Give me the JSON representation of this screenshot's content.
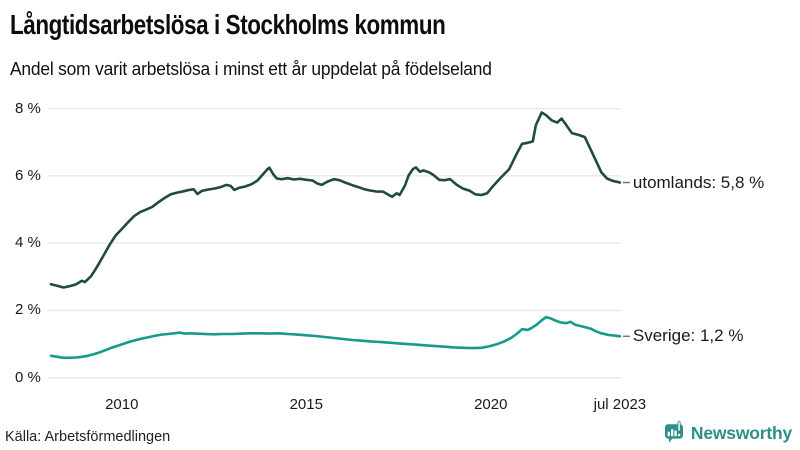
{
  "chart_data": {
    "type": "line",
    "title": "Långtidsarbetslösa i Stockholms kommun",
    "subtitle": "Andel som varit arbetslösa i minst ett år uppdelat på födelseland",
    "xlim": [
      2008.0,
      2023.53
    ],
    "ylim": [
      0,
      8
    ],
    "grid": true,
    "legend_position": "end-of-line",
    "x_ticks": [
      {
        "value": 2010,
        "label": "2010"
      },
      {
        "value": 2015,
        "label": "2015"
      },
      {
        "value": 2020,
        "label": "2020"
      },
      {
        "value": 2023.5,
        "label": "jul 2023"
      }
    ],
    "y_ticks": [
      {
        "value": 8,
        "label": "8 %"
      },
      {
        "value": 6,
        "label": "6 %"
      },
      {
        "value": 4,
        "label": "4 %"
      },
      {
        "value": 2,
        "label": "2 %"
      },
      {
        "value": 0,
        "label": "0 %"
      }
    ],
    "series": [
      {
        "name": "utomlands",
        "color": "#204a42",
        "end_label": "utomlands: 5,8 %",
        "last_value": "5,8 %",
        "points": [
          [
            2008.08,
            2.78
          ],
          [
            2008.25,
            2.73
          ],
          [
            2008.42,
            2.68
          ],
          [
            2008.58,
            2.72
          ],
          [
            2008.75,
            2.77
          ],
          [
            2008.92,
            2.88
          ],
          [
            2009.0,
            2.84
          ],
          [
            2009.17,
            3.02
          ],
          [
            2009.33,
            3.3
          ],
          [
            2009.5,
            3.62
          ],
          [
            2009.67,
            3.95
          ],
          [
            2009.83,
            4.22
          ],
          [
            2010.0,
            4.42
          ],
          [
            2010.17,
            4.62
          ],
          [
            2010.33,
            4.8
          ],
          [
            2010.5,
            4.92
          ],
          [
            2010.67,
            5.0
          ],
          [
            2010.83,
            5.08
          ],
          [
            2011.0,
            5.22
          ],
          [
            2011.17,
            5.35
          ],
          [
            2011.33,
            5.45
          ],
          [
            2011.5,
            5.5
          ],
          [
            2011.67,
            5.54
          ],
          [
            2011.83,
            5.58
          ],
          [
            2011.95,
            5.6
          ],
          [
            2012.05,
            5.46
          ],
          [
            2012.17,
            5.55
          ],
          [
            2012.33,
            5.59
          ],
          [
            2012.5,
            5.62
          ],
          [
            2012.67,
            5.66
          ],
          [
            2012.83,
            5.73
          ],
          [
            2012.95,
            5.7
          ],
          [
            2013.05,
            5.58
          ],
          [
            2013.17,
            5.64
          ],
          [
            2013.33,
            5.68
          ],
          [
            2013.5,
            5.74
          ],
          [
            2013.67,
            5.85
          ],
          [
            2013.83,
            6.05
          ],
          [
            2013.95,
            6.2
          ],
          [
            2014.0,
            6.24
          ],
          [
            2014.1,
            6.05
          ],
          [
            2014.2,
            5.92
          ],
          [
            2014.33,
            5.9
          ],
          [
            2014.5,
            5.93
          ],
          [
            2014.67,
            5.89
          ],
          [
            2014.83,
            5.91
          ],
          [
            2015.0,
            5.88
          ],
          [
            2015.17,
            5.86
          ],
          [
            2015.3,
            5.77
          ],
          [
            2015.42,
            5.73
          ],
          [
            2015.58,
            5.83
          ],
          [
            2015.75,
            5.9
          ],
          [
            2015.9,
            5.87
          ],
          [
            2016.08,
            5.79
          ],
          [
            2016.25,
            5.72
          ],
          [
            2016.42,
            5.66
          ],
          [
            2016.58,
            5.6
          ],
          [
            2016.75,
            5.56
          ],
          [
            2016.92,
            5.53
          ],
          [
            2017.08,
            5.53
          ],
          [
            2017.25,
            5.42
          ],
          [
            2017.33,
            5.38
          ],
          [
            2017.45,
            5.48
          ],
          [
            2017.53,
            5.43
          ],
          [
            2017.67,
            5.7
          ],
          [
            2017.78,
            6.02
          ],
          [
            2017.89,
            6.2
          ],
          [
            2017.97,
            6.25
          ],
          [
            2018.08,
            6.12
          ],
          [
            2018.17,
            6.16
          ],
          [
            2018.33,
            6.1
          ],
          [
            2018.45,
            6.02
          ],
          [
            2018.6,
            5.88
          ],
          [
            2018.75,
            5.87
          ],
          [
            2018.9,
            5.9
          ],
          [
            2019.08,
            5.73
          ],
          [
            2019.25,
            5.62
          ],
          [
            2019.42,
            5.56
          ],
          [
            2019.58,
            5.45
          ],
          [
            2019.75,
            5.43
          ],
          [
            2019.9,
            5.48
          ],
          [
            2020.05,
            5.68
          ],
          [
            2020.25,
            5.92
          ],
          [
            2020.5,
            6.2
          ],
          [
            2020.7,
            6.65
          ],
          [
            2020.85,
            6.95
          ],
          [
            2021.0,
            6.98
          ],
          [
            2021.14,
            7.02
          ],
          [
            2021.22,
            7.5
          ],
          [
            2021.38,
            7.88
          ],
          [
            2021.5,
            7.8
          ],
          [
            2021.65,
            7.65
          ],
          [
            2021.8,
            7.58
          ],
          [
            2021.92,
            7.7
          ],
          [
            2022.05,
            7.5
          ],
          [
            2022.2,
            7.27
          ],
          [
            2022.4,
            7.21
          ],
          [
            2022.55,
            7.15
          ],
          [
            2022.68,
            6.85
          ],
          [
            2022.85,
            6.45
          ],
          [
            2023.0,
            6.1
          ],
          [
            2023.15,
            5.92
          ],
          [
            2023.3,
            5.85
          ],
          [
            2023.5,
            5.8
          ]
        ]
      },
      {
        "name": "Sverige",
        "color": "#17998b",
        "end_label": "Sverige: 1,2 %",
        "last_value": "1,2 %",
        "points": [
          [
            2008.08,
            0.65
          ],
          [
            2008.25,
            0.62
          ],
          [
            2008.42,
            0.59
          ],
          [
            2008.58,
            0.59
          ],
          [
            2008.75,
            0.6
          ],
          [
            2008.92,
            0.62
          ],
          [
            2009.08,
            0.65
          ],
          [
            2009.25,
            0.7
          ],
          [
            2009.42,
            0.76
          ],
          [
            2009.58,
            0.83
          ],
          [
            2009.75,
            0.9
          ],
          [
            2009.92,
            0.96
          ],
          [
            2010.08,
            1.02
          ],
          [
            2010.25,
            1.08
          ],
          [
            2010.42,
            1.13
          ],
          [
            2010.58,
            1.17
          ],
          [
            2010.75,
            1.21
          ],
          [
            2010.92,
            1.25
          ],
          [
            2011.08,
            1.28
          ],
          [
            2011.25,
            1.3
          ],
          [
            2011.42,
            1.32
          ],
          [
            2011.58,
            1.34
          ],
          [
            2011.7,
            1.31
          ],
          [
            2011.83,
            1.32
          ],
          [
            2012.0,
            1.31
          ],
          [
            2012.25,
            1.3
          ],
          [
            2012.5,
            1.29
          ],
          [
            2012.75,
            1.3
          ],
          [
            2013.0,
            1.3
          ],
          [
            2013.25,
            1.31
          ],
          [
            2013.5,
            1.32
          ],
          [
            2013.75,
            1.32
          ],
          [
            2014.0,
            1.31
          ],
          [
            2014.25,
            1.32
          ],
          [
            2014.5,
            1.3
          ],
          [
            2014.75,
            1.28
          ],
          [
            2015.0,
            1.26
          ],
          [
            2015.25,
            1.24
          ],
          [
            2015.5,
            1.21
          ],
          [
            2015.75,
            1.18
          ],
          [
            2016.0,
            1.15
          ],
          [
            2016.25,
            1.12
          ],
          [
            2016.5,
            1.1
          ],
          [
            2016.75,
            1.08
          ],
          [
            2017.0,
            1.06
          ],
          [
            2017.25,
            1.04
          ],
          [
            2017.5,
            1.02
          ],
          [
            2017.75,
            1.0
          ],
          [
            2018.0,
            0.98
          ],
          [
            2018.25,
            0.96
          ],
          [
            2018.5,
            0.94
          ],
          [
            2018.75,
            0.92
          ],
          [
            2019.0,
            0.9
          ],
          [
            2019.25,
            0.89
          ],
          [
            2019.5,
            0.88
          ],
          [
            2019.75,
            0.89
          ],
          [
            2019.95,
            0.93
          ],
          [
            2020.15,
            0.99
          ],
          [
            2020.35,
            1.07
          ],
          [
            2020.55,
            1.18
          ],
          [
            2020.7,
            1.3
          ],
          [
            2020.85,
            1.44
          ],
          [
            2021.0,
            1.42
          ],
          [
            2021.1,
            1.47
          ],
          [
            2021.25,
            1.58
          ],
          [
            2021.4,
            1.72
          ],
          [
            2021.5,
            1.8
          ],
          [
            2021.6,
            1.77
          ],
          [
            2021.75,
            1.7
          ],
          [
            2021.9,
            1.64
          ],
          [
            2022.05,
            1.62
          ],
          [
            2022.15,
            1.66
          ],
          [
            2022.3,
            1.57
          ],
          [
            2022.5,
            1.52
          ],
          [
            2022.7,
            1.46
          ],
          [
            2022.85,
            1.38
          ],
          [
            2023.0,
            1.32
          ],
          [
            2023.2,
            1.27
          ],
          [
            2023.35,
            1.25
          ],
          [
            2023.5,
            1.23
          ]
        ]
      }
    ]
  },
  "footer": {
    "source": "Källa: Arbetsförmedlingen",
    "brand": "Newsworthy",
    "brand_color": "#2f8e89"
  },
  "colors": {
    "grid": "#e8e8ec",
    "text": "#1a1a1a",
    "leader": "#777777"
  }
}
